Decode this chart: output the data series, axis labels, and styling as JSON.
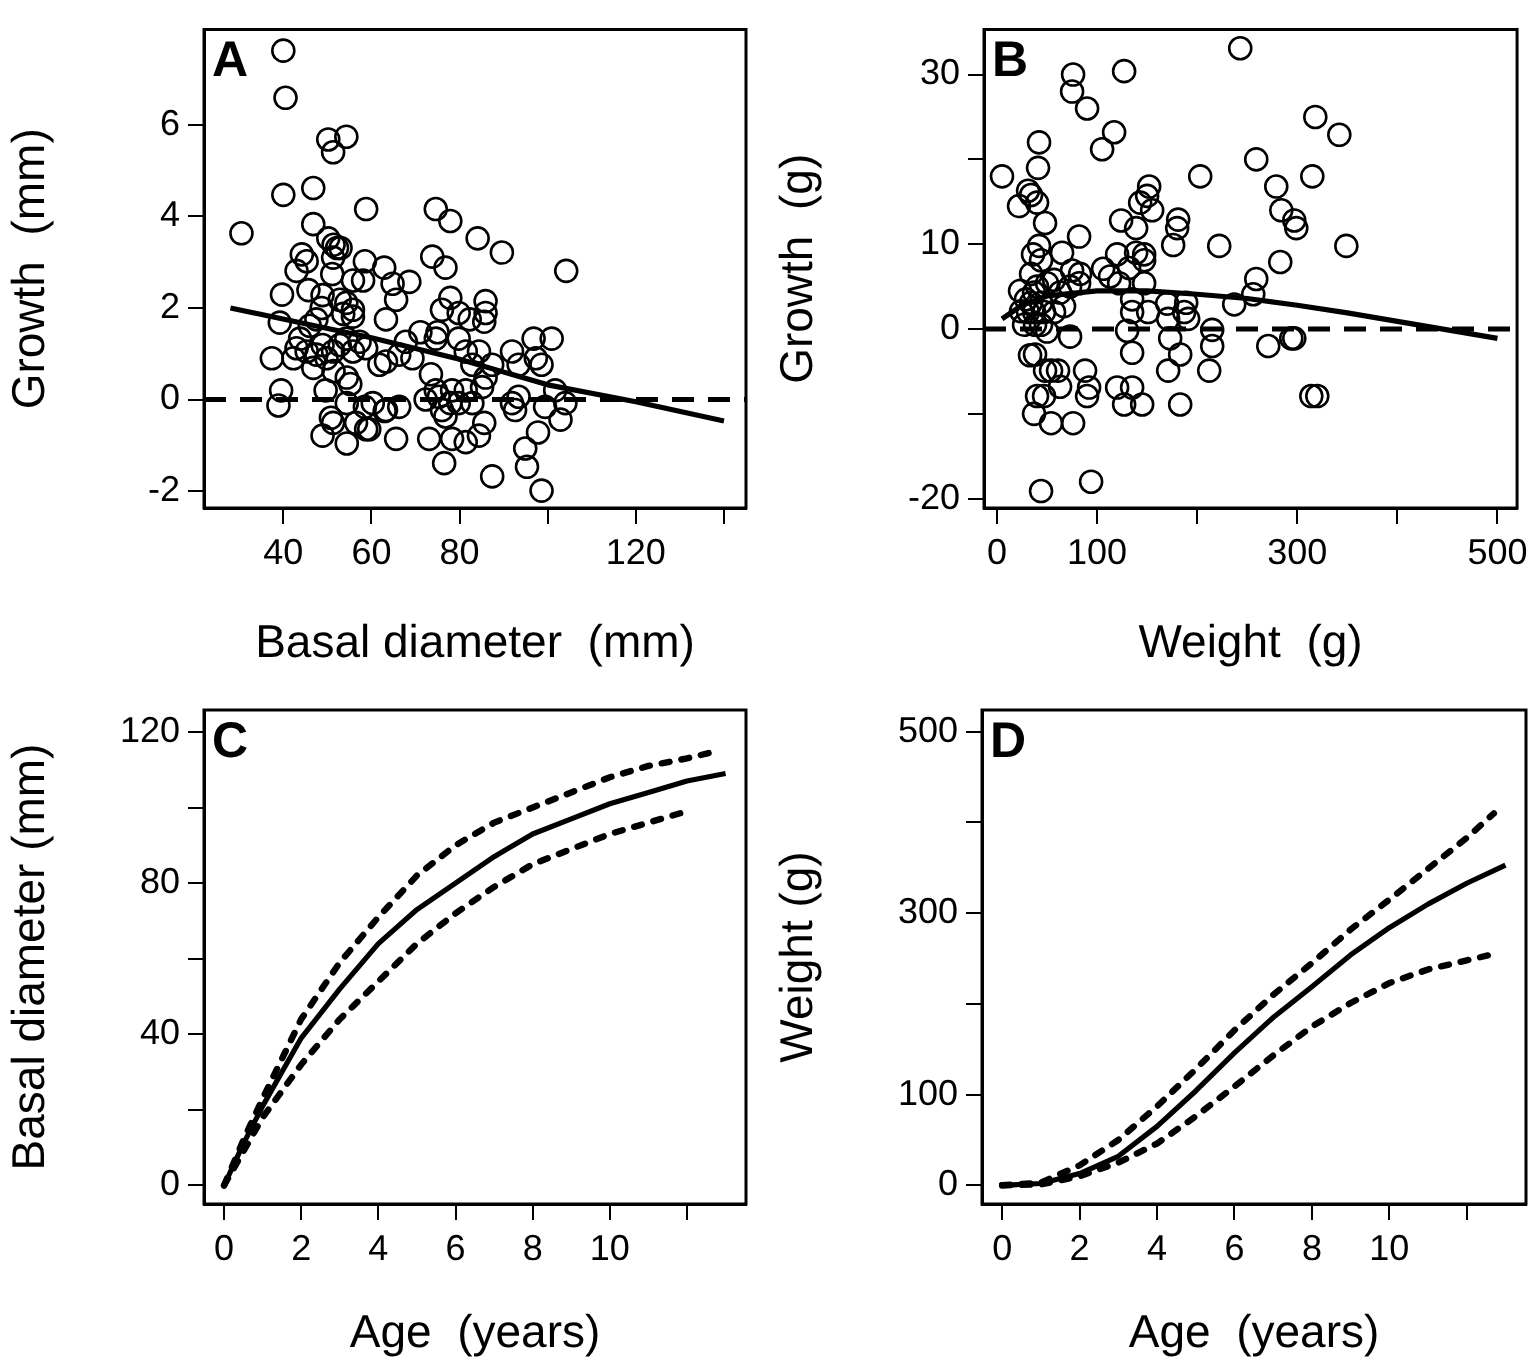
{
  "chart_data": [
    {
      "type": "scatter",
      "annotations": [
        "A"
      ],
      "xlabel": "Basal diameter  (mm)",
      "ylabel": "Growth  (mm)",
      "xlim": [
        22,
        145
      ],
      "ylim": [
        -2.37,
        8.08
      ],
      "xticks": [
        40,
        60,
        80,
        {
          "value": 100,
          "label": null
        },
        120,
        {
          "value": 140,
          "label": null
        }
      ],
      "yticks": [
        -2,
        0,
        2,
        4,
        6
      ],
      "marker": "circle",
      "ref_lines": [
        {
          "axis": "y",
          "value": 0,
          "line_style": "dashed",
          "color": "#000000"
        }
      ],
      "series": [
        {
          "color": "#000000",
          "x": [
            40,
            40.5,
            40,
            30.5,
            50.2,
            54.3,
            51.3,
            58.8,
            46.8,
            46.8,
            50.2,
            51.4,
            52.2,
            53,
            44.2,
            45.3,
            43,
            51.3,
            58.5,
            62.9,
            51.1,
            55.8,
            58.1,
            64.8,
            45.7,
            39.7,
            48.9,
            52.8,
            54.3,
            65.6,
            55.8,
            48.7,
            39.2,
            47.5,
            53.6,
            55.8,
            63.3,
            46,
            43,
            43.8,
            45.3,
            47.5,
            42.3,
            37.4,
            46.8,
            48.9,
            49.8,
            51.3,
            52.8,
            54.3,
            55.8,
            57.3,
            58.8,
            51.4,
            54.4,
            55.2,
            49.6,
            39.5,
            38.9,
            54.4,
            58.5,
            56.5,
            58.8,
            50.8,
            51.3,
            48.9,
            54.4,
            65.6,
            63.3,
            66.3,
            61.8,
            63.3,
            66.3,
            69.3,
            67.8,
            71.1,
            74.6,
            75,
            68.6,
            73.8,
            74.6,
            77.9,
            76.8,
            76,
            77.9,
            79.8,
            84.1,
            89.6,
            104.2,
            82.3,
            85.9,
            85.9,
            85.6,
            79.8,
            81.4,
            84.4,
            82.9,
            85.9,
            85.1,
            87.4,
            91.9,
            96.8,
            100.9,
            93.4,
            98.6,
            97.3,
            73.5,
            74.6,
            75.3,
            72.3,
            76,
            76.8,
            78.3,
            79.8,
            81.4,
            82.9,
            77.9,
            73.1,
            78.3,
            81.4,
            76.5,
            85.6,
            84.4,
            87.4,
            91.9,
            92.6,
            93.4,
            94.9,
            95.3,
            97.8,
            98.6,
            99.4,
            101.7,
            102.9,
            104,
            60.3,
            59.5,
            63
          ],
          "values": [
            7.62,
            6.59,
            4.47,
            3.63,
            5.68,
            5.74,
            5.4,
            4.16,
            4.62,
            3.83,
            3.52,
            3.38,
            3.31,
            3.31,
            3.17,
            3.02,
            2.81,
            3.1,
            3.02,
            2.88,
            2.74,
            2.6,
            2.6,
            2.53,
            2.39,
            2.29,
            2.28,
            2.18,
            2.11,
            2.18,
            1.96,
            2,
            1.68,
            1.75,
            1.87,
            1.81,
            1.75,
            1.61,
            1.12,
            1.33,
            1.05,
            0.98,
            0.9,
            0.9,
            0.69,
            1.19,
            0.9,
            1.05,
            1.19,
            1.33,
            1.05,
            1.26,
            1.12,
            0.62,
            0.48,
            0.34,
            0.2,
            0.2,
            -0.13,
            -0.08,
            -0.16,
            -0.51,
            -0.65,
            -0.4,
            -0.51,
            -0.79,
            -0.96,
            -0.86,
            -0.23,
            -0.16,
            0.76,
            0.83,
            0.98,
            0.9,
            1.26,
            1.47,
            1.33,
            1.47,
            2.57,
            3.12,
            4.16,
            3.9,
            2.88,
            1.96,
            2.22,
            1.89,
            3.52,
            3.21,
            2.81,
            1.75,
            2.15,
            1.89,
            1.7,
            1.33,
            1.05,
            1.05,
            0.76,
            0.48,
            0.27,
            0.76,
            1.05,
            1.33,
            1.33,
            0.76,
            0.76,
            0.9,
            0.55,
            0.2,
            0.06,
            0,
            -0.23,
            -0.37,
            0.2,
            -0.08,
            0.2,
            -0.08,
            -0.08,
            -0.86,
            -0.86,
            -0.93,
            -1.39,
            -0.51,
            -0.79,
            -1.68,
            -0.08,
            -0.23,
            0.06,
            -1.07,
            -1.47,
            -0.72,
            -1.99,
            -0.16,
            0.2,
            -0.44,
            -0.08,
            -0.08,
            -0.65,
            -0.25
          ]
        },
        {
          "type": "line",
          "marker": "none",
          "line_style": "solid",
          "color": "#000000",
          "x": [
            28,
            60,
            80,
            100,
            120,
            140
          ],
          "values": [
            2,
            1.35,
            0.88,
            0.32,
            -0.05,
            -0.47
          ]
        }
      ]
    },
    {
      "type": "scatter",
      "annotations": [
        "B"
      ],
      "xlabel": "Weight  (g)",
      "ylabel": "Growth  (g)",
      "xlim": [
        -13,
        519.6
      ],
      "ylim": [
        -21.1,
        35.3
      ],
      "xticks": [
        0,
        100,
        {
          "value": 200,
          "label": null
        },
        300,
        {
          "value": 400,
          "label": null
        },
        500
      ],
      "yticks": [
        -20,
        {
          "value": -10,
          "label": null
        },
        0,
        10,
        {
          "value": 20,
          "label": null
        },
        30
      ],
      "marker": "circle",
      "ref_lines": [
        {
          "axis": "y",
          "value": 0,
          "line_style": "dashed",
          "color": "#000000"
        }
      ],
      "series": [
        {
          "color": "#000000",
          "x": [
            243,
            76,
            127,
            75,
            90,
            117,
            105,
            42,
            41,
            5,
            259,
            203,
            318,
            342,
            315,
            279,
            152,
            150,
            155,
            143,
            124,
            139,
            181,
            180,
            176,
            222,
            284,
            297,
            299,
            349,
            283,
            259,
            256,
            237,
            31,
            34,
            22,
            40,
            48,
            82,
            42,
            44,
            65,
            75,
            36,
            106,
            113,
            120,
            139,
            147,
            147,
            132,
            122,
            147,
            135,
            135,
            151,
            189,
            187,
            191,
            171,
            170,
            130,
            173,
            215,
            215,
            183,
            135,
            212,
            171,
            271,
            294,
            297,
            314,
            320,
            120,
            135,
            127,
            145,
            183,
            88,
            92,
            90,
            73,
            48,
            54,
            61,
            63,
            40,
            47,
            37,
            54,
            76,
            44,
            94,
            33,
            38,
            27,
            23,
            37,
            34,
            44,
            50,
            57,
            63,
            73,
            83,
            34,
            40,
            47,
            57,
            67,
            37,
            44,
            50,
            31,
            29,
            38,
            82,
            24
          ],
          "values": [
            33.1,
            30,
            30.4,
            28,
            26,
            23.2,
            21.2,
            22,
            19,
            18,
            20,
            18,
            25,
            22.9,
            18,
            16.8,
            16.8,
            15.7,
            14,
            14.9,
            12.8,
            11.9,
            12.9,
            11.9,
            9.9,
            9.8,
            14,
            12.8,
            11.9,
            9.8,
            7.9,
            5.9,
            4.1,
            2.9,
            16.3,
            15.8,
            14.5,
            14.9,
            12.5,
            10.9,
            9.8,
            8.1,
            9,
            6.9,
            8.8,
            7.1,
            6.2,
            8.8,
            9,
            8.8,
            8.1,
            7.2,
            5.4,
            5.4,
            3.5,
            2,
            2,
            3.1,
            2,
            1.2,
            1.2,
            3,
            -0.2,
            -1.1,
            -0.1,
            -2,
            -3,
            -2.8,
            -4.9,
            -4.9,
            -2,
            -1.1,
            -1.1,
            -7.9,
            -7.9,
            -6.9,
            -6.9,
            -8.9,
            -8.9,
            -8.9,
            -4.9,
            -6.9,
            -7.9,
            -0.9,
            -4.9,
            -4.9,
            -4.9,
            -6.8,
            -7.9,
            -7.9,
            -10,
            -11.1,
            -11.1,
            -19.1,
            -18,
            -3.1,
            -3,
            0.5,
            4.5,
            4.3,
            3.1,
            3.1,
            5.4,
            5.8,
            4.3,
            5,
            6.5,
            6.5,
            5,
            2,
            2,
            2.7,
            2,
            0.5,
            -0.3,
            2,
            3.5,
            0.5,
            5.4,
            2.1
          ]
        },
        {
          "type": "line",
          "marker": "none",
          "line_style": "solid",
          "color": "#000000",
          "x": [
            5,
            25,
            50,
            100,
            150,
            200,
            250,
            300,
            350,
            400,
            450,
            500
          ],
          "values": [
            1.2,
            2.8,
            3.9,
            4.5,
            4.5,
            4.1,
            3.6,
            2.8,
            1.9,
            0.9,
            -0.1,
            -1.1
          ]
        }
      ]
    },
    {
      "type": "line",
      "annotations": [
        "C"
      ],
      "xlabel": "Age  (years)",
      "ylabel": "Basal diameter (mm)",
      "xlim": [
        -0.52,
        13.53
      ],
      "ylim": [
        -4.9,
        125.8
      ],
      "xticks": [
        0,
        2,
        4,
        6,
        8,
        10,
        {
          "value": 12,
          "label": null
        }
      ],
      "yticks": [
        0,
        {
          "value": 20,
          "label": null
        },
        40,
        {
          "value": 60,
          "label": null
        },
        80,
        {
          "value": 100,
          "label": null
        },
        120
      ],
      "marker": "none",
      "series": [
        {
          "line_style": "solid",
          "color": "#000000",
          "x": [
            0,
            0.5,
            1,
            1.5,
            2,
            3,
            4,
            5,
            6,
            7,
            8,
            9,
            10,
            11,
            12,
            13
          ],
          "values": [
            0,
            11,
            21,
            30,
            39,
            52,
            64,
            73,
            80,
            87,
            93,
            97,
            101,
            104,
            107,
            109
          ]
        },
        {
          "line_style": "dotted",
          "color": "#000000",
          "x": [
            0,
            0.5,
            1,
            2,
            3,
            4,
            5,
            6,
            7,
            8,
            9,
            10,
            11,
            12,
            12.8
          ],
          "values": [
            0,
            12,
            23,
            44,
            59,
            71,
            82,
            90,
            96,
            100,
            104,
            108,
            111,
            113,
            115
          ]
        },
        {
          "line_style": "dotted",
          "color": "#000000",
          "x": [
            0,
            0.5,
            1,
            2,
            3,
            4,
            5,
            6,
            7,
            8,
            9,
            10,
            11,
            12
          ],
          "values": [
            0,
            9,
            18,
            32,
            44,
            54,
            64,
            72,
            79,
            85,
            89,
            93,
            96,
            99
          ]
        }
      ]
    },
    {
      "type": "line",
      "annotations": [
        "D"
      ],
      "xlabel": "Age  (years)",
      "ylabel": "Weight (g)",
      "xlim": [
        -0.52,
        13.53
      ],
      "ylim": [
        -20.6,
        524
      ],
      "xticks": [
        0,
        2,
        4,
        6,
        8,
        10,
        {
          "value": 12,
          "label": null
        }
      ],
      "yticks": [
        0,
        100,
        {
          "value": 200,
          "label": null
        },
        300,
        {
          "value": 400,
          "label": null
        },
        500
      ],
      "marker": "none",
      "series": [
        {
          "line_style": "solid",
          "color": "#000000",
          "x": [
            0,
            1,
            2,
            3,
            4,
            5,
            6,
            7,
            8,
            9,
            10,
            11,
            12,
            13
          ],
          "values": [
            0,
            2,
            13,
            32,
            65,
            104,
            146,
            185,
            219,
            254,
            284,
            310,
            333,
            353
          ]
        },
        {
          "line_style": "dotted",
          "color": "#000000",
          "x": [
            0,
            1,
            2,
            3,
            4,
            5,
            6,
            7,
            8,
            9,
            10,
            11,
            12,
            12.7
          ],
          "values": [
            0,
            3,
            22,
            50,
            87,
            128,
            171,
            210,
            245,
            282,
            315,
            349,
            383,
            410
          ]
        },
        {
          "line_style": "dotted",
          "color": "#000000",
          "x": [
            0,
            1,
            2,
            3,
            4,
            5,
            6,
            7,
            8,
            9,
            10,
            11,
            12,
            12.8
          ],
          "values": [
            0,
            1,
            10,
            25,
            46,
            76,
            109,
            143,
            175,
            201,
            223,
            238,
            248,
            256
          ]
        }
      ]
    }
  ]
}
